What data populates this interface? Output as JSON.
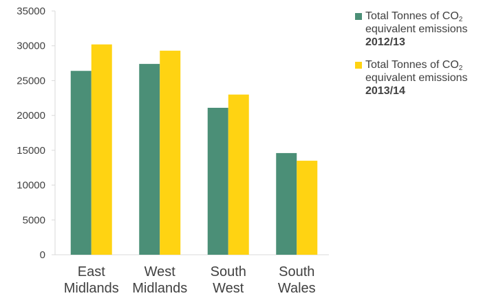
{
  "chart_data": {
    "type": "bar",
    "categories": [
      [
        "East",
        "Midlands"
      ],
      [
        "West",
        "Midlands"
      ],
      [
        "South",
        "West"
      ],
      [
        "South",
        "Wales"
      ]
    ],
    "series": [
      {
        "name": "Total Tonnes of CO2 equivalent emissions 2012/13",
        "name_parts": {
          "pre": "Total Tonnes of CO",
          "sub": "2",
          "mid": "equivalent emissions",
          "bold": "2012/13"
        },
        "color": "#4b8f77",
        "values": [
          26400,
          27400,
          21100,
          14600
        ]
      },
      {
        "name": "Total Tonnes of CO2 equivalent emissions 2013/14",
        "name_parts": {
          "pre": "Total Tonnes of CO",
          "sub": "2",
          "mid": "equivalent emissions",
          "bold": "2013/14"
        },
        "color": "#ffd312",
        "values": [
          30200,
          29300,
          23000,
          13500
        ]
      }
    ],
    "ylim": [
      0,
      35000
    ],
    "yticks": [
      0,
      5000,
      10000,
      15000,
      20000,
      25000,
      30000,
      35000
    ],
    "grid": false,
    "legend_position": "right",
    "title": "",
    "xlabel": "",
    "ylabel": ""
  }
}
